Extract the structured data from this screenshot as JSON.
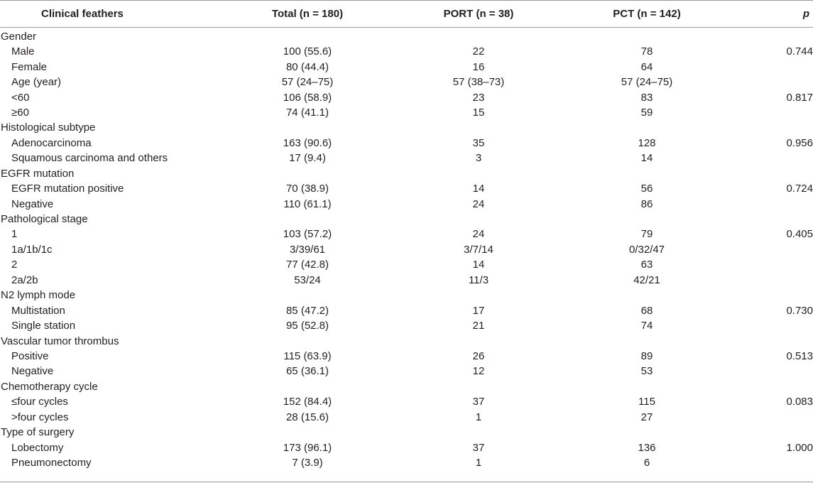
{
  "table": {
    "headers": {
      "feature": "Clinical feathers",
      "total": "Total (n = 180)",
      "port": "PORT (n = 38)",
      "pct": "PCT (n = 142)",
      "p": "p"
    },
    "rows": [
      {
        "label": "Gender",
        "total": "",
        "port": "",
        "pct": "",
        "p": ""
      },
      {
        "label": "Male",
        "total": "100 (55.6)",
        "port": "22",
        "pct": "78",
        "p": "0.744"
      },
      {
        "label": "Female",
        "total": "80 (44.4)",
        "port": "16",
        "pct": "64",
        "p": ""
      },
      {
        "label": "Age (year)",
        "total": "57 (24–75)",
        "port": "57 (38–73)",
        "pct": "57 (24–75)",
        "p": ""
      },
      {
        "label": "<60",
        "total": "106 (58.9)",
        "port": "23",
        "pct": "83",
        "p": "0.817"
      },
      {
        "label": "≥60",
        "total": "74 (41.1)",
        "port": "15",
        "pct": "59",
        "p": ""
      },
      {
        "label": "Histological subtype",
        "total": "",
        "port": "",
        "pct": "",
        "p": ""
      },
      {
        "label": "Adenocarcinoma",
        "total": "163 (90.6)",
        "port": "35",
        "pct": "128",
        "p": "0.956"
      },
      {
        "label": "Squamous carcinoma and others",
        "total": "17 (9.4)",
        "port": "3",
        "pct": "14",
        "p": ""
      },
      {
        "label": "EGFR mutation",
        "total": "",
        "port": "",
        "pct": "",
        "p": ""
      },
      {
        "label": "EGFR mutation positive",
        "total": "70 (38.9)",
        "port": "14",
        "pct": "56",
        "p": "0.724"
      },
      {
        "label": "Negative",
        "total": "110 (61.1)",
        "port": "24",
        "pct": "86",
        "p": ""
      },
      {
        "label": "Pathological stage",
        "total": "",
        "port": "",
        "pct": "",
        "p": ""
      },
      {
        "label": "1",
        "total": "103 (57.2)",
        "port": "24",
        "pct": "79",
        "p": "0.405"
      },
      {
        "label": "1a/1b/1c",
        "total": "3/39/61",
        "port": "3/7/14",
        "pct": "0/32/47",
        "p": ""
      },
      {
        "label": "2",
        "total": "77 (42.8)",
        "port": "14",
        "pct": "63",
        "p": ""
      },
      {
        "label": "2a/2b",
        "total": "53/24",
        "port": "11/3",
        "pct": "42/21",
        "p": ""
      },
      {
        "label": "N2 lymph mode",
        "total": "",
        "port": "",
        "pct": "",
        "p": ""
      },
      {
        "label": "Multistation",
        "total": "85 (47.2)",
        "port": "17",
        "pct": "68",
        "p": "0.730"
      },
      {
        "label": "Single station",
        "total": "95 (52.8)",
        "port": "21",
        "pct": "74",
        "p": ""
      },
      {
        "label": "Vascular tumor thrombus",
        "total": "",
        "port": "",
        "pct": "",
        "p": ""
      },
      {
        "label": "Positive",
        "total": "115 (63.9)",
        "port": "26",
        "pct": "89",
        "p": "0.513"
      },
      {
        "label": "Negative",
        "total": "65 (36.1)",
        "port": "12",
        "pct": "53",
        "p": ""
      },
      {
        "label": "Chemotherapy cycle",
        "total": "",
        "port": "",
        "pct": "",
        "p": ""
      },
      {
        "label": "≤four cycles",
        "total": "152 (84.4)",
        "port": "37",
        "pct": "115",
        "p": "0.083"
      },
      {
        "label": ">four cycles",
        "total": "28 (15.6)",
        "port": "1",
        "pct": "27",
        "p": ""
      },
      {
        "label": "Type of surgery",
        "total": "",
        "port": "",
        "pct": "",
        "p": ""
      },
      {
        "label": "Lobectomy",
        "total": "173 (96.1)",
        "port": "37",
        "pct": "136",
        "p": "1.000"
      },
      {
        "label": "Pneumonectomy",
        "total": "7 (3.9)",
        "port": "1",
        "pct": "6",
        "p": ""
      }
    ]
  }
}
